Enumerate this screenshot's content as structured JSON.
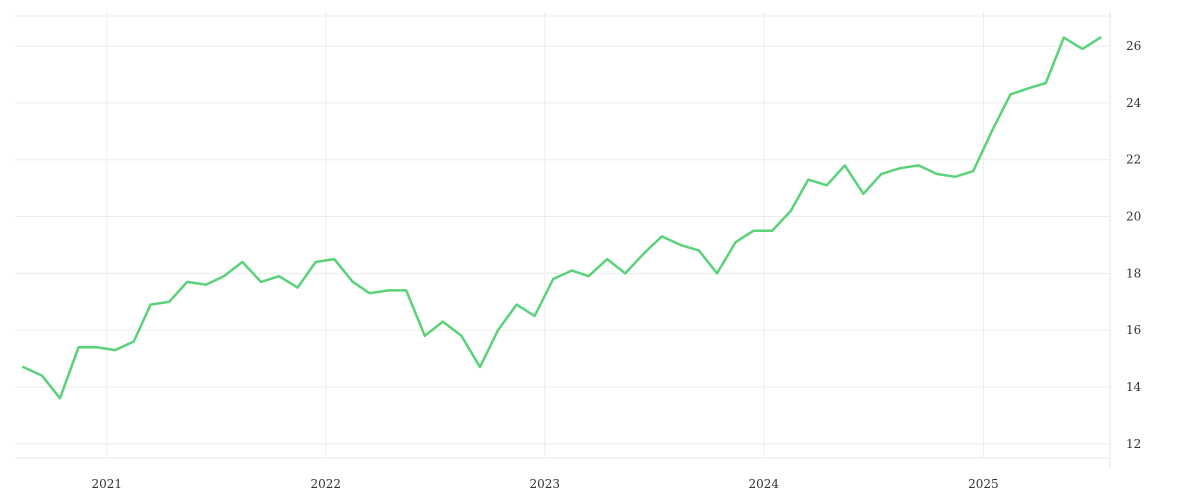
{
  "chart_data": {
    "type": "line",
    "title": "",
    "xlabel": "",
    "ylabel": "",
    "grid": true,
    "legend": "none",
    "x_ticks": [
      {
        "label": "2021",
        "date": "2021-01-01"
      },
      {
        "label": "2022",
        "date": "2022-01-01"
      },
      {
        "label": "2023",
        "date": "2023-01-01"
      },
      {
        "label": "2024",
        "date": "2024-01-01"
      },
      {
        "label": "2025",
        "date": "2025-01-01"
      }
    ],
    "y_ticks": [
      12,
      14,
      16,
      18,
      20,
      22,
      24,
      26
    ],
    "xlim": [
      "2020-08-01",
      "2025-07-31"
    ],
    "ylim": [
      11.5,
      27.2
    ],
    "series": [
      {
        "color": "#5ad27a",
        "x": [
          "2020-08",
          "2020-09",
          "2020-10",
          "2020-11",
          "2020-12",
          "2021-01",
          "2021-02",
          "2021-03",
          "2021-04",
          "2021-05",
          "2021-06",
          "2021-07",
          "2021-08",
          "2021-09",
          "2021-10",
          "2021-11",
          "2021-12",
          "2022-01",
          "2022-02",
          "2022-03",
          "2022-04",
          "2022-05",
          "2022-06",
          "2022-07",
          "2022-08",
          "2022-09",
          "2022-10",
          "2022-11",
          "2022-12",
          "2023-01",
          "2023-02",
          "2023-03",
          "2023-04",
          "2023-05",
          "2023-06",
          "2023-07",
          "2023-08",
          "2023-09",
          "2023-10",
          "2023-11",
          "2023-12",
          "2024-01",
          "2024-02",
          "2024-03",
          "2024-04",
          "2024-05",
          "2024-06",
          "2024-07",
          "2024-08",
          "2024-09",
          "2024-10",
          "2024-11",
          "2024-12",
          "2025-01",
          "2025-02",
          "2025-03",
          "2025-04",
          "2025-05",
          "2025-06",
          "2025-07"
        ],
        "values": [
          14.7,
          14.4,
          13.6,
          15.4,
          15.4,
          15.3,
          15.6,
          16.9,
          17.0,
          17.7,
          17.6,
          17.9,
          18.4,
          17.7,
          17.9,
          17.5,
          18.4,
          18.5,
          17.7,
          17.3,
          17.4,
          17.4,
          15.8,
          16.3,
          15.8,
          14.7,
          16.0,
          16.9,
          16.5,
          17.8,
          18.1,
          17.9,
          18.5,
          18.0,
          18.7,
          19.3,
          19.0,
          18.8,
          18.0,
          19.1,
          19.5,
          19.5,
          20.2,
          21.3,
          21.1,
          21.8,
          20.8,
          21.5,
          21.7,
          21.8,
          21.5,
          21.4,
          21.6,
          23.0,
          24.3,
          24.5,
          24.7,
          26.3,
          25.9,
          26.3
        ]
      }
    ]
  }
}
